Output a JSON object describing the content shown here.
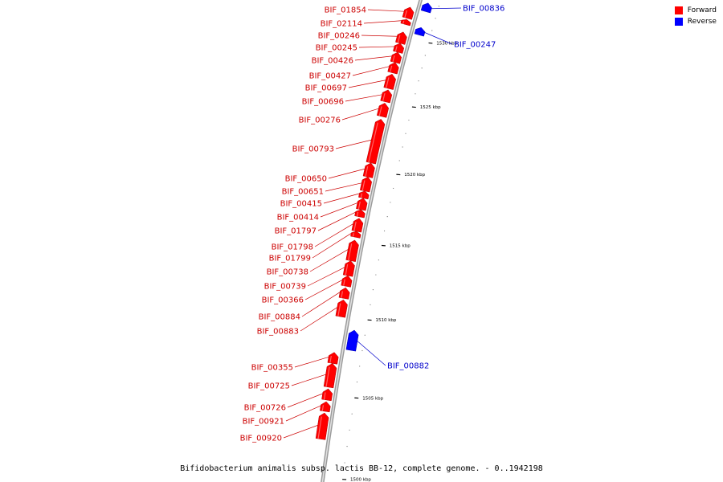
{
  "legend": {
    "forward_label": "Forward",
    "reverse_label": "Reverse",
    "forward_color": "#ff0000",
    "reverse_color": "#0000ff"
  },
  "caption": "Bifidobacterium animalis subsp. lactis BB-12, complete genome. - 0..1942198",
  "genes": [
    {
      "id": "BIF_01854",
      "strand": "forward",
      "start_kbp": 1532.3,
      "end_kbp": 1531.4
    },
    {
      "id": "BIF_02114",
      "strand": "forward",
      "start_kbp": 1531.3,
      "end_kbp": 1530.9
    },
    {
      "id": "BIF_00246",
      "strand": "forward",
      "start_kbp": 1530.3,
      "end_kbp": 1529.4
    },
    {
      "id": "BIF_00245",
      "strand": "forward",
      "start_kbp": 1529.4,
      "end_kbp": 1528.7
    },
    {
      "id": "BIF_00426",
      "strand": "forward",
      "start_kbp": 1528.7,
      "end_kbp": 1527.9
    },
    {
      "id": "BIF_00427",
      "strand": "forward",
      "start_kbp": 1527.9,
      "end_kbp": 1527.1
    },
    {
      "id": "BIF_00697",
      "strand": "forward",
      "start_kbp": 1527.0,
      "end_kbp": 1525.9
    },
    {
      "id": "BIF_00696",
      "strand": "forward",
      "start_kbp": 1525.8,
      "end_kbp": 1524.9
    },
    {
      "id": "BIF_00276",
      "strand": "forward",
      "start_kbp": 1524.8,
      "end_kbp": 1523.8
    },
    {
      "id": "BIF_00793",
      "strand": "forward",
      "start_kbp": 1523.6,
      "end_kbp": 1520.4
    },
    {
      "id": "BIF_00650",
      "strand": "forward",
      "start_kbp": 1520.4,
      "end_kbp": 1519.4
    },
    {
      "id": "BIF_00651",
      "strand": "forward",
      "start_kbp": 1519.4,
      "end_kbp": 1518.4
    },
    {
      "id": "BIF_00415",
      "strand": "forward",
      "start_kbp": 1518.4,
      "end_kbp": 1517.9
    },
    {
      "id": "BIF_00414",
      "strand": "forward",
      "start_kbp": 1517.9,
      "end_kbp": 1517.1
    },
    {
      "id": "BIF_01797",
      "strand": "forward",
      "start_kbp": 1517.1,
      "end_kbp": 1516.6
    },
    {
      "id": "BIF_01798",
      "strand": "forward",
      "start_kbp": 1516.5,
      "end_kbp": 1515.6
    },
    {
      "id": "BIF_01799",
      "strand": "forward",
      "start_kbp": 1515.6,
      "end_kbp": 1515.2
    },
    {
      "id": "BIF_00738",
      "strand": "forward",
      "start_kbp": 1515.0,
      "end_kbp": 1513.6
    },
    {
      "id": "BIF_00739",
      "strand": "forward",
      "start_kbp": 1513.6,
      "end_kbp": 1512.6
    },
    {
      "id": "BIF_00366",
      "strand": "forward",
      "start_kbp": 1512.6,
      "end_kbp": 1511.9
    },
    {
      "id": "BIF_00884",
      "strand": "forward",
      "start_kbp": 1511.8,
      "end_kbp": 1511.1
    },
    {
      "id": "BIF_00883",
      "strand": "forward",
      "start_kbp": 1511.0,
      "end_kbp": 1509.9
    },
    {
      "id": "BIF_00882",
      "strand": "reverse",
      "start_kbp": 1509.2,
      "end_kbp": 1507.9
    },
    {
      "id": "BIF_00355",
      "strand": "forward",
      "start_kbp": 1507.6,
      "end_kbp": 1506.9
    },
    {
      "id": "BIF_00725",
      "strand": "forward",
      "start_kbp": 1506.9,
      "end_kbp": 1505.4
    },
    {
      "id": "BIF_00726",
      "strand": "forward",
      "start_kbp": 1505.3,
      "end_kbp": 1504.6
    },
    {
      "id": "BIF_00921",
      "strand": "forward",
      "start_kbp": 1504.5,
      "end_kbp": 1503.9
    },
    {
      "id": "BIF_00920",
      "strand": "forward",
      "start_kbp": 1503.8,
      "end_kbp": 1502.2
    },
    {
      "id": "BIF_00836",
      "strand": "reverse",
      "start_kbp": 1533.0,
      "end_kbp": 1532.3
    },
    {
      "id": "BIF_00247",
      "strand": "reverse",
      "start_kbp": 1531.0,
      "end_kbp": 1530.4
    }
  ],
  "axis": {
    "unit": "kbp",
    "major_ticks_kbp": [
      1530,
      1525,
      1520,
      1515,
      1510,
      1505,
      1500
    ],
    "tick_labels": [
      "1530 kbp",
      "1525 kbp",
      "1520 kbp",
      "1515 kbp",
      "1510 kbp",
      "1505 kbp",
      "1500 kbp"
    ]
  }
}
